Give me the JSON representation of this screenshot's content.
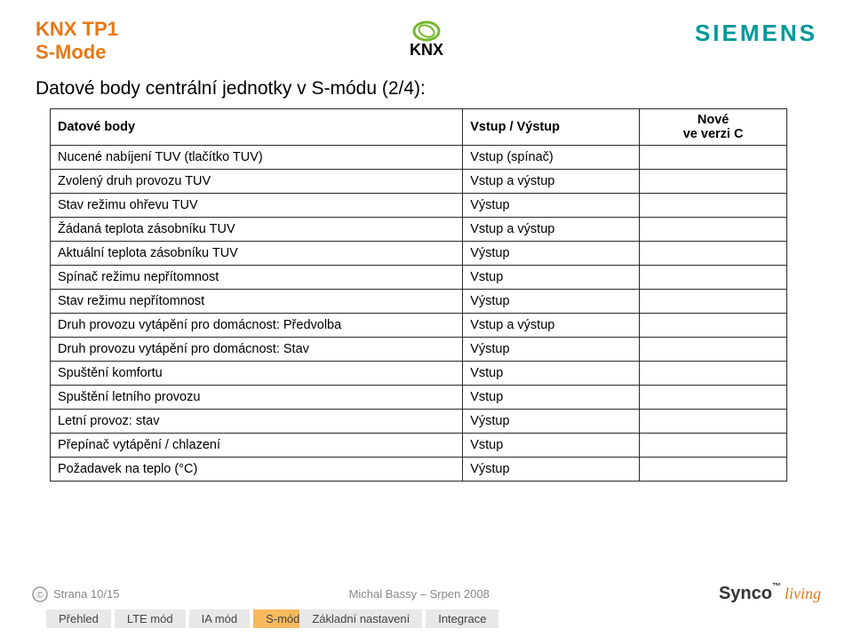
{
  "colors": {
    "title": "#e77817",
    "siemens": "#009999",
    "knx_ring": "#76b82a",
    "text": "#000000",
    "border": "#2a2a2a",
    "footer_grey": "#888888",
    "tab_active_bg": "#f7ba5e",
    "tab_inactive_bg": "#e8e8e8",
    "synco_sub": "#e77817"
  },
  "fonts": {
    "title_size": 22,
    "subtitle_size": 21,
    "cell_size": 14.5,
    "tab_size": 13,
    "footer_size": 13
  },
  "header": {
    "line1": "KNX TP1",
    "line2": "S-Mode",
    "knx_label": "KNX",
    "siemens": "SIEMENS"
  },
  "subtitle": "Datové body centrální jednotky v S-módu (2/4):",
  "table": {
    "headers": {
      "c1": "Datové body",
      "c2": "Vstup / Výstup",
      "c3_l1": "Nové",
      "c3_l2": "ve verzi C"
    },
    "rows": [
      {
        "c1": "Nucené nabíjení TUV (tlačítko TUV)",
        "c2": "Vstup (spínač)",
        "c3": ""
      },
      {
        "c1": "Zvolený druh provozu TUV",
        "c2": "Vstup a výstup",
        "c3": ""
      },
      {
        "c1": "Stav režimu ohřevu TUV",
        "c2": "Výstup",
        "c3": ""
      },
      {
        "c1": "Žádaná teplota zásobníku TUV",
        "c2": "Vstup a výstup",
        "c3": ""
      },
      {
        "c1": "Aktuální teplota zásobníku TUV",
        "c2": "Výstup",
        "c3": ""
      },
      {
        "c1": "Spínač režimu nepřítomnost",
        "c2": "Vstup",
        "c3": ""
      },
      {
        "c1": "Stav režimu nepřítomnost",
        "c2": "Výstup",
        "c3": ""
      },
      {
        "c1": "Druh provozu vytápění pro domácnost: Předvolba",
        "c2": "Vstup a výstup",
        "c3": ""
      },
      {
        "c1": "Druh provozu vytápění pro domácnost: Stav",
        "c2": "Výstup",
        "c3": ""
      },
      {
        "c1": "Spuštění komfortu",
        "c2": "Vstup",
        "c3": ""
      },
      {
        "c1": "Spuštění letního provozu",
        "c2": "Vstup",
        "c3": ""
      },
      {
        "c1": "Letní provoz: stav",
        "c2": "Výstup",
        "c3": ""
      },
      {
        "c1": "Přepínač vytápění / chlazení",
        "c2": "Vstup",
        "c3": ""
      },
      {
        "c1": "Požadavek na teplo (°C)",
        "c2": "Výstup",
        "c3": ""
      }
    ]
  },
  "footer": {
    "page": "Strana 10/15",
    "author": "Michal Bassy – Srpen 2008",
    "synco_name": "Synco",
    "synco_tm": "™",
    "synco_sub": "living"
  },
  "tabs": [
    {
      "label": "Přehled",
      "active": false
    },
    {
      "label": "LTE mód",
      "active": false
    },
    {
      "label": "IA mód",
      "active": false
    },
    {
      "label": "S-mód",
      "active": true,
      "label2": "Základní nastavení"
    },
    {
      "label": "Integrace",
      "active": false
    }
  ]
}
